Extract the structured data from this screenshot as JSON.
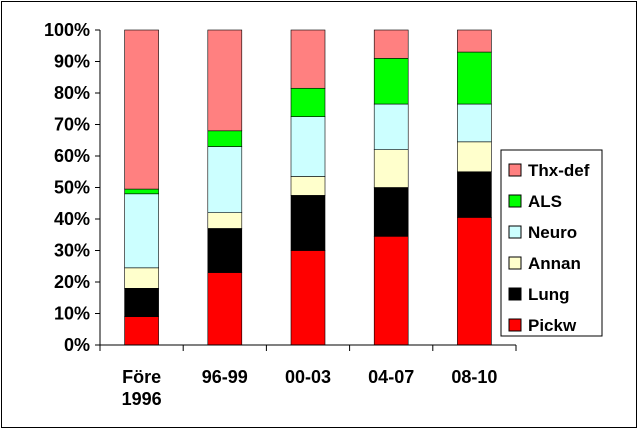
{
  "chart_data": {
    "type": "bar",
    "stacked": true,
    "percent": true,
    "categories": [
      [
        "Före",
        "1996"
      ],
      [
        "96-99"
      ],
      [
        "00-03"
      ],
      [
        "04-07"
      ],
      [
        "08-10"
      ]
    ],
    "y_ticks": [
      "0%",
      "10%",
      "20%",
      "30%",
      "40%",
      "50%",
      "60%",
      "70%",
      "80%",
      "90%",
      "100%"
    ],
    "ylim": [
      0,
      100
    ],
    "grid": false,
    "legend_position": "right",
    "series": [
      {
        "name": "Pickw",
        "color": "#ff0000",
        "values": [
          9,
          23,
          30,
          34.5,
          40.5
        ]
      },
      {
        "name": "Lung",
        "color": "#000000",
        "values": [
          9,
          14,
          17.5,
          15.5,
          14.5
        ]
      },
      {
        "name": "Annan",
        "color": "#ffffcc",
        "values": [
          6.5,
          5,
          6,
          12,
          9.5
        ]
      },
      {
        "name": "Neuro",
        "color": "#ccffff",
        "values": [
          23.5,
          21,
          19,
          14.5,
          12
        ]
      },
      {
        "name": "ALS",
        "color": "#00ff00",
        "values": [
          1.5,
          5,
          9,
          14.5,
          16.5
        ]
      },
      {
        "name": "Thx-def",
        "color": "#ff8080",
        "values": [
          50.5,
          32,
          18.5,
          9,
          7
        ]
      }
    ]
  }
}
